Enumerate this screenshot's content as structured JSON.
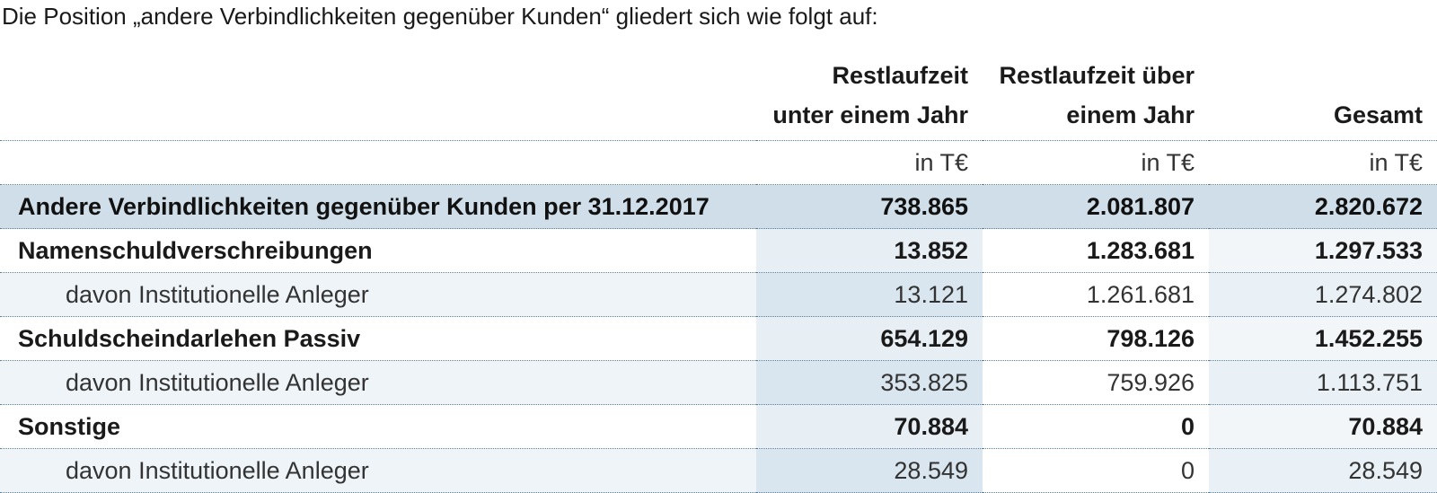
{
  "intro": "Die Position „andere Verbindlichkeiten gegenüber Kunden“ gliedert sich wie folgt auf:",
  "header": {
    "col1_line1": "Restlaufzeit",
    "col1_line2": "unter einem Jahr",
    "col2_line1": "Restlaufzeit über",
    "col2_line2": "einem Jahr",
    "col3_line1": "",
    "col3_line2": "Gesamt"
  },
  "units": [
    "in T€",
    "in T€",
    "in T€"
  ],
  "rows": [
    {
      "label": "Andere Verbindlichkeiten gegenüber Kunden per 31.12.2017",
      "v1": "738.865",
      "v2": "2.081.807",
      "v3": "2.820.672"
    },
    {
      "label": "Namenschuldverschreibungen",
      "v1": "13.852",
      "v2": "1.283.681",
      "v3": "1.297.533"
    },
    {
      "label": "davon Institutionelle Anleger",
      "v1": "13.121",
      "v2": "1.261.681",
      "v3": "1.274.802"
    },
    {
      "label": "Schuldscheindarlehen Passiv",
      "v1": "654.129",
      "v2": "798.126",
      "v3": "1.452.255"
    },
    {
      "label": "davon Institutionelle Anleger",
      "v1": "353.825",
      "v2": "759.926",
      "v3": "1.113.751"
    },
    {
      "label": "Sonstige",
      "v1": "70.884",
      "v2": "0",
      "v3": "70.884"
    },
    {
      "label": "davon Institutionelle Anleger",
      "v1": "28.549",
      "v2": "0",
      "v3": "28.549"
    }
  ],
  "colors": {
    "total_row_bg": "#cfdee8",
    "sub_row_bg": "#eef4f8",
    "rule": "#5a7f99"
  }
}
